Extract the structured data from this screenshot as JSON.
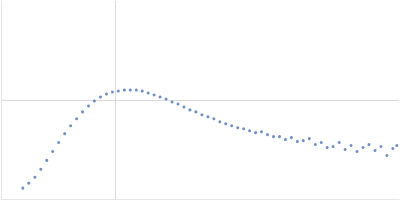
{
  "chart_data": {
    "type": "scatter",
    "x": [
      0.191,
      0.243,
      0.296,
      0.348,
      0.4,
      0.452,
      0.504,
      0.557,
      0.609,
      0.661,
      0.713,
      0.765,
      0.817,
      0.87,
      0.922,
      0.974,
      1.026,
      1.078,
      1.13,
      1.183,
      1.235,
      1.287,
      1.339,
      1.391,
      1.443,
      1.496,
      1.548,
      1.6,
      1.652,
      1.704,
      1.757,
      1.809,
      1.861,
      1.913,
      1.965,
      2.017,
      2.07,
      2.122,
      2.174,
      2.226,
      2.278,
      2.33,
      2.383,
      2.435,
      2.487,
      2.539,
      2.591,
      2.643,
      2.696,
      2.748,
      2.8,
      2.852,
      2.904,
      2.957,
      3.009,
      3.061,
      3.113,
      3.165,
      3.217,
      3.27,
      3.322,
      3.374,
      3.426,
      3.461
    ],
    "values": [
      0.11,
      0.16,
      0.22,
      0.3,
      0.39,
      0.48,
      0.57,
      0.66,
      0.74,
      0.81,
      0.88,
      0.94,
      0.99,
      1.03,
      1.06,
      1.08,
      1.09,
      1.1,
      1.1,
      1.1,
      1.09,
      1.07,
      1.05,
      1.03,
      1.01,
      0.98,
      0.96,
      0.93,
      0.9,
      0.88,
      0.85,
      0.83,
      0.81,
      0.78,
      0.76,
      0.74,
      0.72,
      0.71,
      0.69,
      0.67,
      0.68,
      0.65,
      0.63,
      0.63,
      0.6,
      0.62,
      0.58,
      0.59,
      0.61,
      0.55,
      0.57,
      0.52,
      0.53,
      0.57,
      0.5,
      0.54,
      0.48,
      0.52,
      0.55,
      0.49,
      0.53,
      0.44,
      0.51,
      0.54
    ],
    "color": "#4a72b8",
    "marker": "circle",
    "xlim": [
      0,
      3.48
    ],
    "xticks": [
      1
    ],
    "ylim": [
      0,
      2
    ],
    "yticks": [
      1
    ],
    "grid": true,
    "tick_labels": false
  }
}
